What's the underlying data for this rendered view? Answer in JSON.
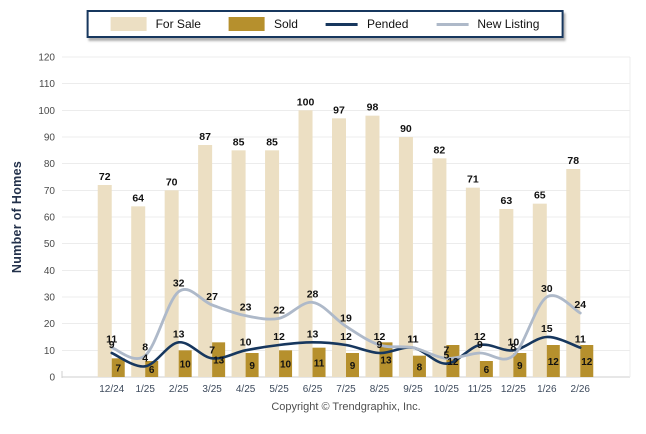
{
  "legend": {
    "items": [
      {
        "label": "For Sale",
        "type": "bar",
        "color": "#ECDFC3"
      },
      {
        "label": "Sold",
        "type": "bar",
        "color": "#B6902D"
      },
      {
        "label": "Pended",
        "type": "line",
        "color": "#17375E"
      },
      {
        "label": "New Listing",
        "type": "line",
        "color": "#AEB9C9"
      }
    ]
  },
  "chart_data": {
    "type": "bar",
    "categories": [
      "12/24",
      "1/25",
      "2/25",
      "3/25",
      "4/25",
      "5/25",
      "6/25",
      "7/25",
      "8/25",
      "9/25",
      "10/25",
      "11/25",
      "12/25",
      "1/26",
      "2/26"
    ],
    "series": [
      {
        "name": "For Sale",
        "type": "bar",
        "color": "#ECDFC3",
        "values": [
          72,
          64,
          70,
          87,
          85,
          85,
          100,
          97,
          98,
          90,
          82,
          71,
          63,
          65,
          78
        ]
      },
      {
        "name": "Sold",
        "type": "bar",
        "color": "#B6902D",
        "values": [
          7,
          6,
          10,
          13,
          9,
          10,
          11,
          9,
          13,
          8,
          12,
          6,
          9,
          12,
          12
        ]
      },
      {
        "name": "Pended",
        "type": "line",
        "color": "#17375E",
        "values": [
          9,
          4,
          13,
          7,
          10,
          12,
          13,
          12,
          9,
          11,
          5,
          12,
          10,
          15,
          11
        ]
      },
      {
        "name": "New Listing",
        "type": "line",
        "color": "#AEB9C9",
        "values": [
          11,
          8,
          32,
          27,
          23,
          22,
          28,
          19,
          12,
          11,
          7,
          9,
          8,
          30,
          24
        ]
      }
    ],
    "title": "",
    "xlabel": "",
    "ylabel": "Number of Homes",
    "ylim": [
      0,
      120
    ],
    "yticks": [
      0,
      10,
      20,
      30,
      40,
      50,
      60,
      70,
      80,
      90,
      100,
      110,
      120
    ],
    "grid": true,
    "legend_position": "top",
    "colors": {
      "gridline": "#ECECEC",
      "axis_line": "#CFCFCF",
      "tick_text": "#4a4a4a",
      "xtick_text": "#3d4a5c",
      "data_label": "#111111"
    }
  },
  "footer": {
    "text": "Copyright © Trendgraphix, Inc."
  }
}
